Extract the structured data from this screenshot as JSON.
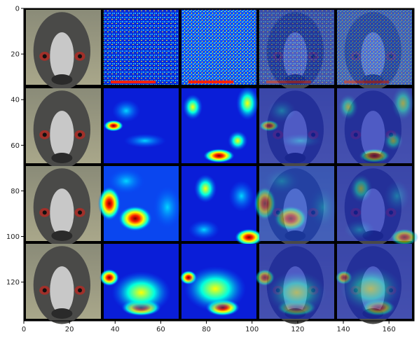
{
  "figure": {
    "background": "#000000",
    "grid_rows": 4,
    "grid_cols": 5,
    "cells": [
      [
        "photo",
        "heatmap-fine-1",
        "heatmap-fine-2",
        "overlay-fine-1",
        "overlay-fine-2"
      ],
      [
        "photo",
        "heatmap-mid-1",
        "heatmap-mid-2",
        "overlay-mid-1",
        "overlay-mid-2"
      ],
      [
        "photo",
        "heatmap-coarse-1",
        "heatmap-coarse-2",
        "overlay-coarse-1",
        "overlay-coarse-2"
      ],
      [
        "photo",
        "heatmap-coarser-1",
        "heatmap-coarser-2",
        "overlay-coarser-1",
        "overlay-coarser-2"
      ]
    ]
  },
  "axes": {
    "x_ticks": [
      "0",
      "20",
      "40",
      "60",
      "80",
      "100",
      "120",
      "140",
      "160"
    ],
    "y_ticks": [
      "0",
      "20",
      "40",
      "60",
      "80",
      "100",
      "120"
    ],
    "xlim": [
      0,
      171
    ],
    "ylim": [
      137,
      0
    ]
  },
  "colors": {
    "heat_low": "#000080",
    "heat_mid_low": "#0050ff",
    "heat_mid": "#00ffe0",
    "heat_mid_high": "#ffff00",
    "heat_high": "#ff2000",
    "heat_max": "#800000",
    "photo_bg": "#b0ad8a",
    "photo_face": "#5a5a5a",
    "eye_red": "#a0302a"
  }
}
